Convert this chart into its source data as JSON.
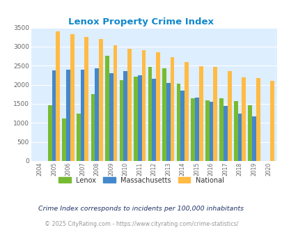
{
  "title": "Lenox Property Crime Index",
  "years": [
    2004,
    2005,
    2006,
    2007,
    2008,
    2009,
    2010,
    2011,
    2012,
    2013,
    2014,
    2015,
    2016,
    2017,
    2018,
    2019,
    2020
  ],
  "lenox": [
    0,
    1470,
    1110,
    1250,
    1760,
    2770,
    2130,
    2210,
    2460,
    2430,
    2030,
    1650,
    1590,
    1650,
    1570,
    1460,
    0
  ],
  "massachusetts": [
    0,
    2370,
    2400,
    2400,
    2430,
    2300,
    2350,
    2250,
    2150,
    2050,
    1840,
    1670,
    1560,
    1440,
    1250,
    1170,
    0
  ],
  "national": [
    0,
    3410,
    3330,
    3250,
    3200,
    3040,
    2950,
    2910,
    2860,
    2720,
    2590,
    2490,
    2470,
    2360,
    2200,
    2180,
    2110
  ],
  "lenox_color": "#77bb33",
  "massachusetts_color": "#4488cc",
  "national_color": "#ffbb44",
  "background_color": "#ddeeff",
  "title_color": "#1188cc",
  "ylim": [
    0,
    3500
  ],
  "yticks": [
    0,
    500,
    1000,
    1500,
    2000,
    2500,
    3000,
    3500
  ],
  "subtitle": "Crime Index corresponds to incidents per 100,000 inhabitants",
  "footer": "© 2025 CityRating.com - https://www.cityrating.com/crime-statistics/",
  "legend_labels": [
    "Lenox",
    "Massachusetts",
    "National"
  ]
}
